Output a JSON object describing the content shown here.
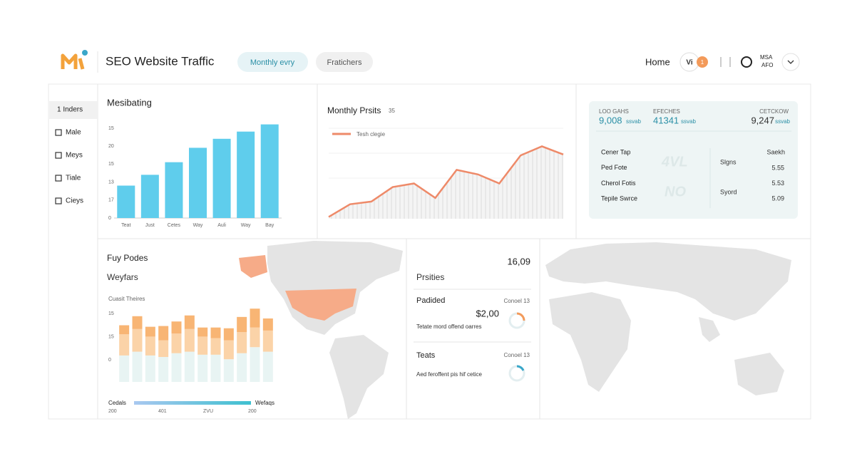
{
  "header": {
    "title": "SEO Website Traffic",
    "tabs": [
      "Monthly evry",
      "Fratichers"
    ],
    "home": "Home",
    "user_initials": "Vi",
    "notifications": "1",
    "account": [
      "MSA",
      "AFO"
    ]
  },
  "sidebar": {
    "items": [
      "1  Inders",
      "Male",
      "Meys",
      "Tiale",
      "Cieys"
    ]
  },
  "bar_panel": {
    "chart_data": {
      "type": "bar",
      "title": "Mesibating",
      "categories": [
        "Teat",
        "Just",
        "Cetes",
        "Way",
        "Auli",
        "Way",
        "Bay"
      ],
      "values": [
        1.8,
        2.4,
        3.1,
        3.9,
        4.4,
        4.8,
        5.2
      ],
      "color": "#5fcdec",
      "ylim": [
        0,
        5.5
      ],
      "y_labels": [
        "15",
        "20",
        "15",
        "13",
        "17",
        "0"
      ]
    }
  },
  "line_panel": {
    "chart_data": {
      "type": "line",
      "title": "Monthly Prsits",
      "badge": "35",
      "series": [
        {
          "name": "Tesh clegie",
          "color": "#ee8a69",
          "values": [
            2,
            16,
            19,
            35,
            39,
            23,
            54,
            49,
            39,
            70,
            80,
            71
          ]
        }
      ],
      "ylim": [
        0,
        100
      ]
    }
  },
  "stats_panel": {
    "columns": [
      {
        "label": "LOO GAHS",
        "value": "9,008",
        "unit": "ssvab"
      },
      {
        "label": "EFECHES",
        "value": "41341",
        "unit": "ssvab"
      },
      {
        "label": "CETCKOW",
        "value": "9,247",
        "unit": "ssvab"
      }
    ],
    "rows": [
      "Cener Tap",
      "Ped Fote",
      "Cherol Fotis",
      "Tepile Swrce"
    ],
    "watermarks": [
      "4VL",
      "NO"
    ],
    "mid": [
      "Slgns",
      "Syord"
    ],
    "right_header": "Saekh",
    "right_values": [
      "5.55",
      "5.53",
      "5.09"
    ]
  },
  "bottom_left": {
    "title": "Fuy Podes",
    "chart_data": {
      "type": "stacked-bar",
      "title": "Weyfars",
      "subtitle": "Cuasit Theires",
      "categories": [
        null,
        null,
        null,
        null,
        null,
        null,
        null,
        null,
        null,
        null,
        null,
        null
      ],
      "series": [
        {
          "color": "#e8f4f3",
          "values": [
            35,
            40,
            35,
            33,
            38,
            40,
            36,
            36,
            30,
            38,
            46,
            40
          ]
        },
        {
          "color": "#fbd3a8",
          "values": [
            28,
            30,
            25,
            22,
            26,
            30,
            24,
            22,
            25,
            28,
            26,
            28
          ]
        },
        {
          "color": "#f8b574",
          "values": [
            12,
            17,
            13,
            19,
            16,
            18,
            12,
            14,
            16,
            20,
            25,
            16
          ]
        }
      ],
      "ylim": [
        0,
        100
      ],
      "y_labels": [
        "15",
        "15",
        "0"
      ],
      "legend": {
        "start": "Cedals",
        "end": "Wefaqs",
        "ticks": [
          "200",
          "401",
          "ZVU",
          "200"
        ]
      }
    }
  },
  "middle": {
    "total": "16,09",
    "title": "Prsities",
    "items": [
      {
        "title": "Padided",
        "meta": "Conoel 13",
        "value": "$2,00",
        "text": "Tetate mord offend oarres"
      },
      {
        "title": "Teats",
        "meta": "Conoel 13",
        "text": "Aed feroffent pis hif cetice"
      }
    ]
  }
}
